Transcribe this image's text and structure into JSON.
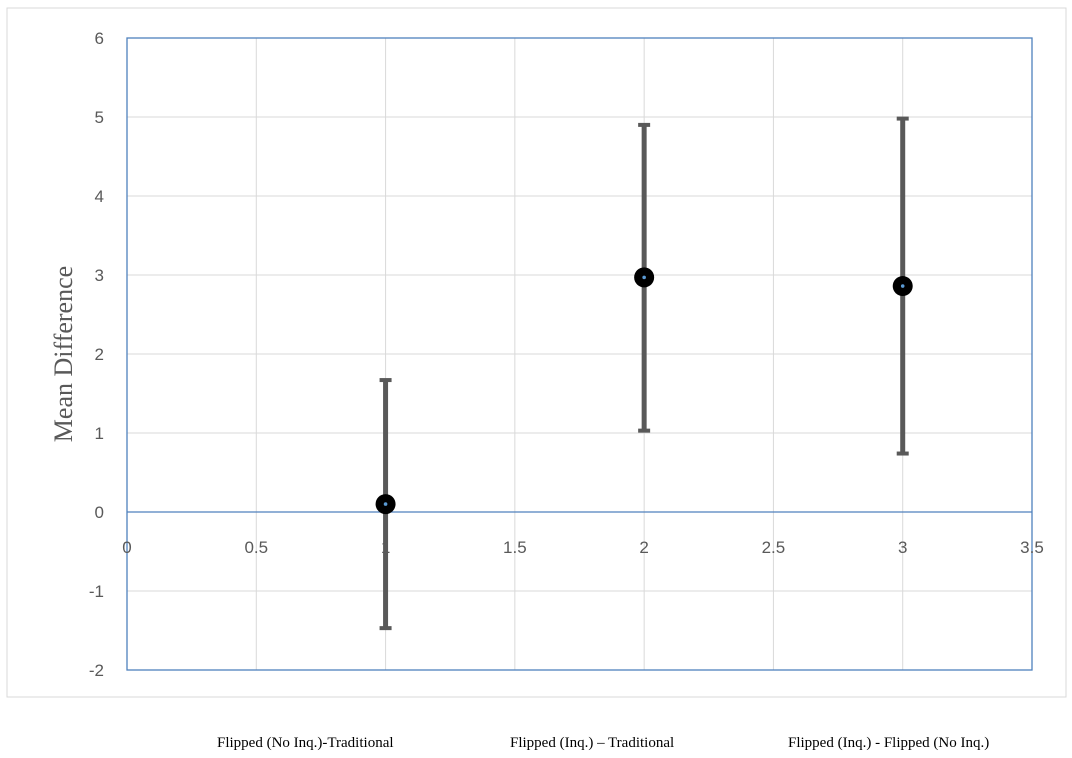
{
  "chart_data": {
    "type": "scatter",
    "title": "",
    "xlabel": "",
    "ylabel": "Mean Difference",
    "xlim": [
      0,
      3.5
    ],
    "ylim": [
      -2,
      6
    ],
    "x_ticks": [
      0,
      0.5,
      1,
      1.5,
      2,
      2.5,
      3,
      3.5
    ],
    "x_tick_labels": [
      "0",
      "0.5",
      "1",
      "1.5",
      "2",
      "2.5",
      "3",
      "3.5"
    ],
    "y_ticks": [
      -2,
      -1,
      0,
      1,
      2,
      3,
      4,
      5,
      6
    ],
    "y_tick_labels": [
      "-2",
      "-1",
      "0",
      "1",
      "2",
      "3",
      "4",
      "5",
      "6"
    ],
    "grid": true,
    "legend": "none",
    "points": [
      {
        "x": 1,
        "y": 0.1,
        "error_low": -1.47,
        "error_high": 1.67
      },
      {
        "x": 2,
        "y": 2.97,
        "error_low": 1.03,
        "error_high": 4.9
      },
      {
        "x": 3,
        "y": 2.86,
        "error_low": 0.74,
        "error_high": 4.98
      }
    ],
    "category_labels": [
      "Flipped (No Inq.)-Traditional",
      "Flipped (Inq.) – Traditional",
      "Flipped (Inq.) - Flipped (No Inq.)"
    ],
    "colors": {
      "marker": "#000000",
      "marker_center": "#5b9bd5",
      "error_bar": "#595959",
      "grid": "#d9d9d9",
      "plot_border": "#4f81bd",
      "chart_border": "#d9d9d9"
    }
  }
}
